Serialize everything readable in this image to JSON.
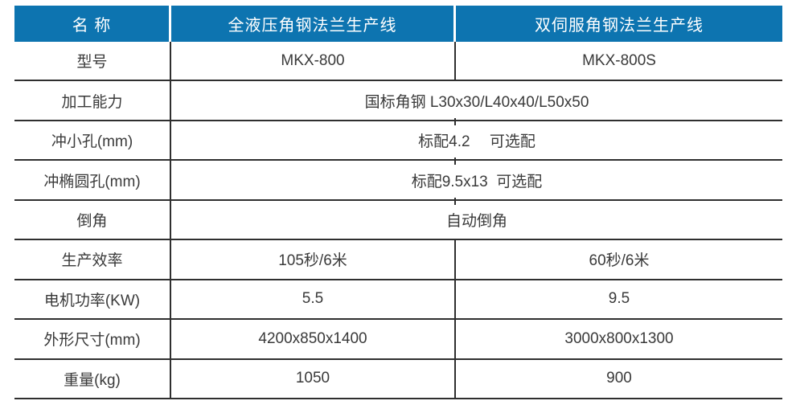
{
  "colors": {
    "header_bg": "#0d74b0",
    "header_text": "#ffffff",
    "body_text": "#3a3a3a",
    "border": "#2f2f2f",
    "page_bg": "#ffffff"
  },
  "table": {
    "header": {
      "label": "名 称",
      "product1": "全液压角钢法兰生产线",
      "product2": "双伺服角钢法兰生产线"
    },
    "rows": [
      {
        "label": "型号",
        "col1": "MKX-800",
        "col2": "MKX-800S"
      },
      {
        "label": "加工能力",
        "value": "国标角钢 L30x30/L40x40/L50x50"
      },
      {
        "label": "冲小孔(mm)",
        "value": "标配4.2　 可选配"
      },
      {
        "label": "冲椭圆孔(mm)",
        "value": "标配9.5x13  可选配"
      },
      {
        "label": "倒角",
        "value": "自动倒角"
      },
      {
        "label": "生产效率",
        "col1": "105秒/6米",
        "col2": "60秒/6米"
      },
      {
        "label": "电机功率(KW)",
        "col1": "5.5",
        "col2": "9.5"
      },
      {
        "label": "外形尺寸(mm)",
        "col1": "4200x850x1400",
        "col2": "3000x800x1300"
      },
      {
        "label": "重量(kg)",
        "col1": "1050",
        "col2": "900"
      }
    ]
  }
}
